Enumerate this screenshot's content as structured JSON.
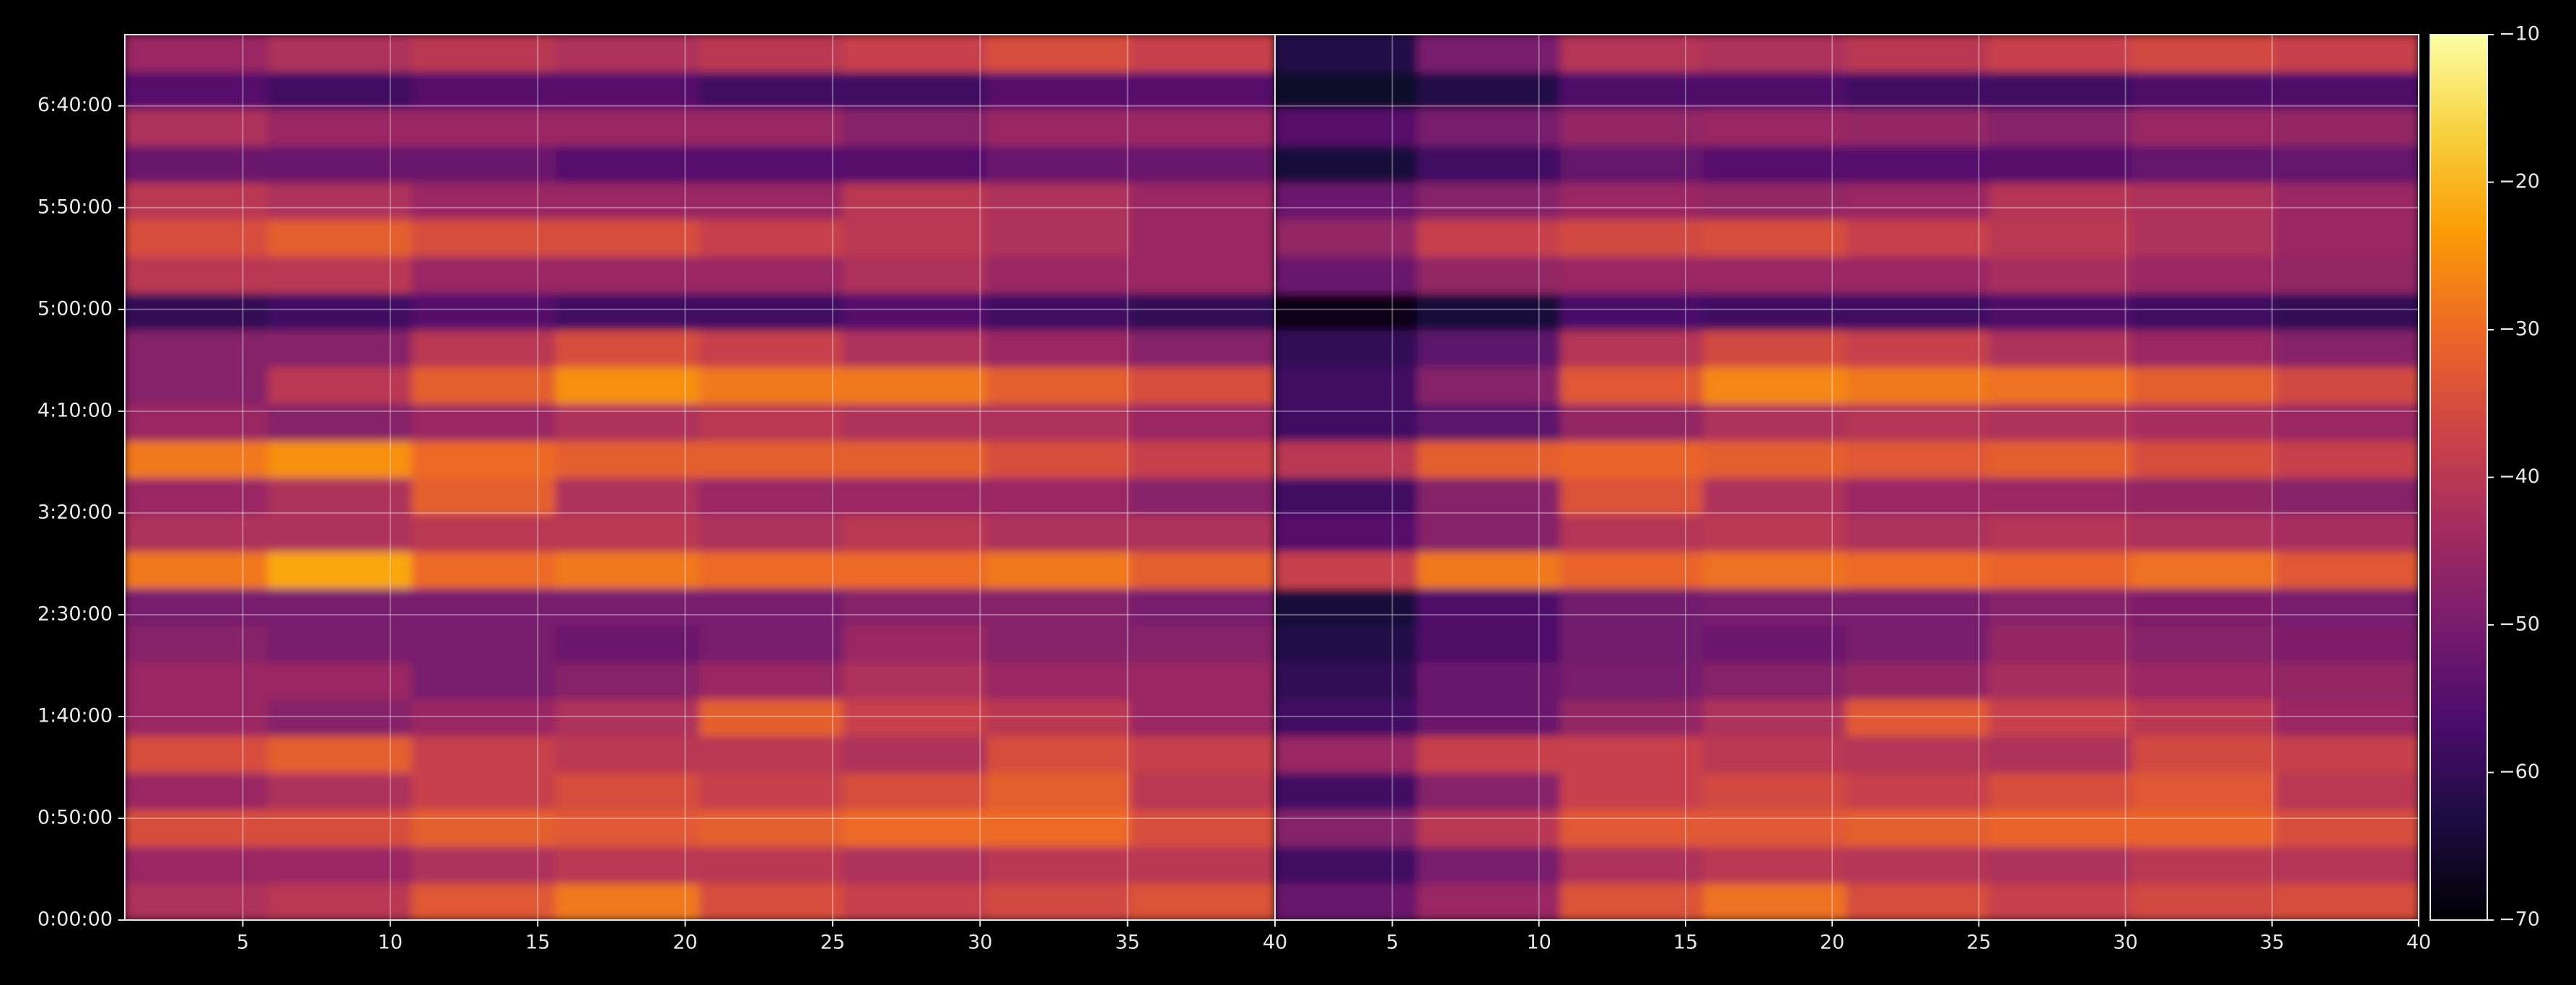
{
  "chart_data": {
    "type": "heatmap",
    "colormap": "inferno",
    "grid": true,
    "ylim": [
      0,
      26100
    ],
    "yticks": [
      {
        "value": 0,
        "label": "0:00:00"
      },
      {
        "value": 3000,
        "label": "0:50:00"
      },
      {
        "value": 6000,
        "label": "1:40:00"
      },
      {
        "value": 9000,
        "label": "2:30:00"
      },
      {
        "value": 12000,
        "label": "3:20:00"
      },
      {
        "value": 15000,
        "label": "4:10:00"
      },
      {
        "value": 18000,
        "label": "5:00:00"
      },
      {
        "value": 21000,
        "label": "5:50:00"
      },
      {
        "value": 24000,
        "label": "6:40:00"
      }
    ],
    "zlim": [
      -70,
      -10
    ],
    "zticks": [
      {
        "value": -70,
        "label": "−70"
      },
      {
        "value": -60,
        "label": "−60"
      },
      {
        "value": -50,
        "label": "−50"
      },
      {
        "value": -40,
        "label": "−40"
      },
      {
        "value": -30,
        "label": "−30"
      },
      {
        "value": -20,
        "label": "−20"
      },
      {
        "value": -10,
        "label": "−10"
      }
    ],
    "panels": [
      {
        "xlim": [
          1,
          40
        ],
        "xticks": [
          5,
          10,
          15,
          20,
          25,
          30,
          35,
          40
        ],
        "values": [
          [
            -42,
            -40,
            -33,
            -28,
            -35,
            -38,
            -36,
            -34
          ],
          [
            -45,
            -45,
            -42,
            -40,
            -40,
            -42,
            -40,
            -40
          ],
          [
            -35,
            -35,
            -32,
            -33,
            -32,
            -30,
            -30,
            -35
          ],
          [
            -45,
            -42,
            -38,
            -35,
            -38,
            -35,
            -32,
            -40
          ],
          [
            -35,
            -32,
            -38,
            -40,
            -40,
            -42,
            -35,
            -38
          ],
          [
            -45,
            -48,
            -45,
            -42,
            -32,
            -38,
            -40,
            -45
          ],
          [
            -45,
            -45,
            -50,
            -48,
            -45,
            -42,
            -45,
            -45
          ],
          [
            -48,
            -50,
            -50,
            -52,
            -50,
            -45,
            -48,
            -48
          ],
          [
            -50,
            -50,
            -50,
            -50,
            -50,
            -48,
            -48,
            -50
          ],
          [
            -28,
            -22,
            -30,
            -28,
            -30,
            -30,
            -28,
            -32
          ],
          [
            -42,
            -42,
            -40,
            -40,
            -42,
            -40,
            -42,
            -42
          ],
          [
            -45,
            -42,
            -32,
            -42,
            -45,
            -45,
            -45,
            -48
          ],
          [
            -28,
            -25,
            -30,
            -32,
            -32,
            -32,
            -35,
            -38
          ],
          [
            -45,
            -48,
            -45,
            -42,
            -40,
            -42,
            -42,
            -45
          ],
          [
            -48,
            -40,
            -32,
            -25,
            -28,
            -28,
            -32,
            -35
          ],
          [
            -48,
            -48,
            -40,
            -35,
            -38,
            -42,
            -45,
            -48
          ],
          [
            -60,
            -58,
            -55,
            -58,
            -58,
            -55,
            -58,
            -60
          ],
          [
            -40,
            -40,
            -45,
            -45,
            -45,
            -42,
            -45,
            -45
          ],
          [
            -35,
            -32,
            -35,
            -35,
            -38,
            -40,
            -42,
            -45
          ],
          [
            -40,
            -42,
            -45,
            -45,
            -45,
            -40,
            -42,
            -45
          ],
          [
            -52,
            -52,
            -52,
            -55,
            -55,
            -55,
            -52,
            -52
          ],
          [
            -42,
            -45,
            -45,
            -45,
            -45,
            -48,
            -45,
            -45
          ],
          [
            -55,
            -58,
            -55,
            -55,
            -58,
            -58,
            -55,
            -55
          ],
          [
            -45,
            -42,
            -40,
            -42,
            -40,
            -38,
            -35,
            -38
          ]
        ]
      },
      {
        "xlim": [
          1,
          40
        ],
        "xticks": [
          5,
          10,
          15,
          20,
          25,
          30,
          35,
          40
        ],
        "values": [
          [
            -52,
            -45,
            -34,
            -29,
            -35,
            -38,
            -36,
            -35
          ],
          [
            -58,
            -50,
            -42,
            -40,
            -41,
            -42,
            -40,
            -41
          ],
          [
            -48,
            -40,
            -33,
            -33,
            -32,
            -31,
            -31,
            -35
          ],
          [
            -58,
            -48,
            -38,
            -36,
            -38,
            -35,
            -33,
            -40
          ],
          [
            -45,
            -38,
            -38,
            -40,
            -41,
            -42,
            -36,
            -38
          ],
          [
            -58,
            -52,
            -46,
            -42,
            -33,
            -38,
            -40,
            -45
          ],
          [
            -60,
            -52,
            -50,
            -48,
            -46,
            -43,
            -45,
            -46
          ],
          [
            -62,
            -56,
            -51,
            -52,
            -50,
            -46,
            -48,
            -49
          ],
          [
            -64,
            -56,
            -51,
            -50,
            -50,
            -48,
            -49,
            -50
          ],
          [
            -38,
            -28,
            -31,
            -29,
            -30,
            -31,
            -29,
            -33
          ],
          [
            -55,
            -48,
            -41,
            -40,
            -42,
            -41,
            -42,
            -43
          ],
          [
            -58,
            -48,
            -34,
            -42,
            -45,
            -45,
            -46,
            -48
          ],
          [
            -40,
            -32,
            -31,
            -32,
            -33,
            -32,
            -35,
            -38
          ],
          [
            -58,
            -54,
            -46,
            -42,
            -41,
            -42,
            -43,
            -45
          ],
          [
            -58,
            -48,
            -33,
            -26,
            -28,
            -29,
            -32,
            -36
          ],
          [
            -60,
            -54,
            -41,
            -36,
            -38,
            -42,
            -45,
            -48
          ],
          [
            -68,
            -64,
            -57,
            -58,
            -58,
            -56,
            -58,
            -60
          ],
          [
            -52,
            -46,
            -45,
            -45,
            -45,
            -43,
            -45,
            -46
          ],
          [
            -46,
            -38,
            -36,
            -35,
            -38,
            -40,
            -42,
            -45
          ],
          [
            -52,
            -48,
            -45,
            -46,
            -45,
            -41,
            -42,
            -45
          ],
          [
            -64,
            -58,
            -53,
            -55,
            -55,
            -55,
            -53,
            -53
          ],
          [
            -55,
            -50,
            -46,
            -45,
            -46,
            -48,
            -45,
            -46
          ],
          [
            -66,
            -62,
            -56,
            -56,
            -58,
            -58,
            -56,
            -56
          ],
          [
            -62,
            -50,
            -41,
            -42,
            -40,
            -38,
            -36,
            -38
          ]
        ]
      }
    ]
  }
}
